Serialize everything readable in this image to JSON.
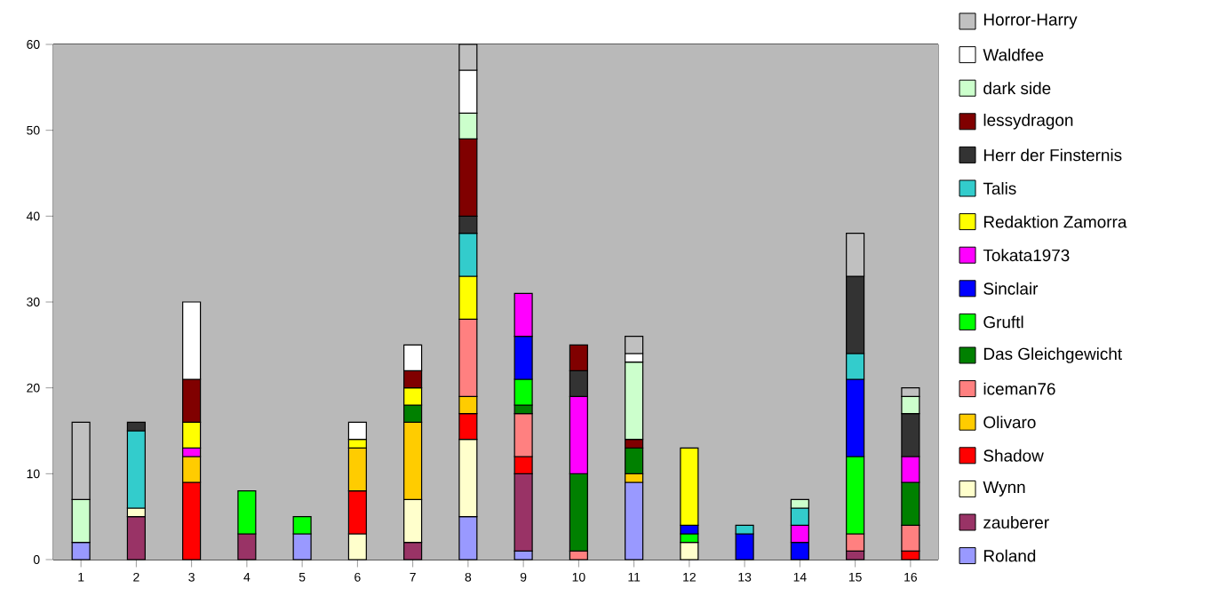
{
  "chart_data": {
    "type": "bar",
    "stacked": true,
    "categories": [
      "1",
      "2",
      "3",
      "4",
      "5",
      "6",
      "7",
      "8",
      "9",
      "10",
      "11",
      "12",
      "13",
      "14",
      "15",
      "16"
    ],
    "ylim": [
      0,
      60
    ],
    "yticks": [
      0,
      10,
      20,
      30,
      40,
      50,
      60
    ],
    "grid": "y",
    "legend": "right",
    "series": [
      {
        "name": "Roland",
        "color": "#9999ff",
        "values": [
          2,
          null,
          null,
          null,
          3,
          null,
          null,
          5,
          1,
          null,
          9,
          null,
          null,
          null,
          null,
          null
        ]
      },
      {
        "name": "zauberer",
        "color": "#993366",
        "values": [
          null,
          5,
          null,
          3,
          null,
          null,
          2,
          null,
          9,
          null,
          null,
          null,
          null,
          null,
          1,
          null
        ]
      },
      {
        "name": "Wynn",
        "color": "#ffffcc",
        "values": [
          null,
          1,
          null,
          null,
          null,
          3,
          5,
          9,
          null,
          null,
          null,
          2,
          null,
          null,
          null,
          null
        ]
      },
      {
        "name": "Shadow",
        "color": "#ff0000",
        "values": [
          null,
          null,
          9,
          null,
          null,
          5,
          null,
          3,
          2,
          null,
          null,
          null,
          null,
          null,
          null,
          1
        ]
      },
      {
        "name": "Olivaro",
        "color": "#ffcc00",
        "values": [
          null,
          null,
          3,
          null,
          null,
          5,
          9,
          2,
          null,
          null,
          1,
          null,
          null,
          null,
          null,
          null
        ]
      },
      {
        "name": "iceman76",
        "color": "#ff8080",
        "values": [
          null,
          null,
          null,
          null,
          null,
          null,
          null,
          9,
          5,
          1,
          null,
          null,
          null,
          null,
          2,
          3
        ]
      },
      {
        "name": "Das Gleichgewicht",
        "color": "#008000",
        "values": [
          null,
          null,
          null,
          null,
          null,
          null,
          2,
          null,
          1,
          9,
          3,
          null,
          null,
          null,
          null,
          5
        ]
      },
      {
        "name": "Gruftl",
        "color": "#00ff00",
        "values": [
          null,
          null,
          null,
          5,
          2,
          null,
          null,
          null,
          3,
          null,
          null,
          1,
          null,
          null,
          9,
          null
        ]
      },
      {
        "name": "Sinclair",
        "color": "#0000ff",
        "values": [
          null,
          null,
          null,
          null,
          null,
          null,
          null,
          null,
          5,
          null,
          null,
          1,
          3,
          2,
          9,
          null
        ]
      },
      {
        "name": "Tokata1973",
        "color": "#ff00ff",
        "values": [
          null,
          null,
          1,
          null,
          null,
          null,
          null,
          null,
          5,
          9,
          null,
          null,
          null,
          2,
          null,
          3
        ]
      },
      {
        "name": "Redaktion Zamorra",
        "color": "#ffff00",
        "values": [
          null,
          null,
          3,
          null,
          null,
          1,
          2,
          5,
          null,
          null,
          null,
          9,
          null,
          null,
          null,
          null
        ]
      },
      {
        "name": "Talis",
        "color": "#33cccc",
        "values": [
          null,
          9,
          null,
          null,
          null,
          null,
          null,
          5,
          null,
          null,
          null,
          null,
          1,
          2,
          3,
          null
        ]
      },
      {
        "name": "Herr der Finsternis",
        "color": "#333333",
        "values": [
          null,
          1,
          null,
          null,
          null,
          null,
          null,
          2,
          null,
          3,
          null,
          null,
          null,
          null,
          9,
          5
        ]
      },
      {
        "name": "lessydragon",
        "color": "#800000",
        "values": [
          null,
          null,
          5,
          null,
          null,
          null,
          2,
          9,
          null,
          3,
          1,
          null,
          null,
          null,
          null,
          null
        ]
      },
      {
        "name": "dark side",
        "color": "#ccffcc",
        "values": [
          5,
          null,
          null,
          null,
          null,
          null,
          null,
          3,
          null,
          null,
          9,
          null,
          null,
          1,
          null,
          2
        ]
      },
      {
        "name": "Waldfee",
        "color": "#ffffff",
        "values": [
          null,
          null,
          9,
          null,
          null,
          2,
          3,
          5,
          null,
          null,
          1,
          null,
          null,
          null,
          null,
          null
        ]
      },
      {
        "name": "Horror-Harry",
        "color": "#c0c0c0",
        "values": [
          9,
          null,
          null,
          null,
          null,
          null,
          null,
          3,
          null,
          null,
          2,
          null,
          null,
          null,
          5,
          1
        ]
      }
    ]
  }
}
